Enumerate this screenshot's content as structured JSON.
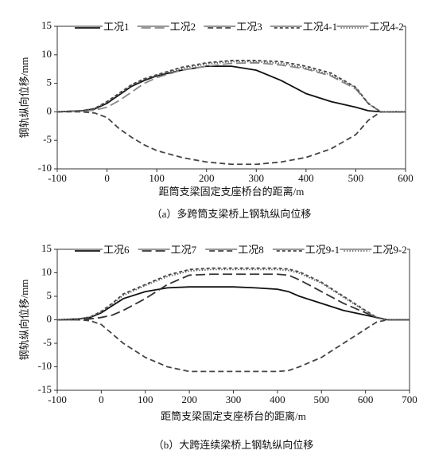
{
  "chart_data": [
    {
      "type": "line",
      "x_label": "距筒支梁固定支座桥台的距离/m",
      "y_label": "钢轨纵向位移/mm",
      "caption": "（a）多跨筒支梁桥上钢轨纵向位移",
      "x": [
        -100,
        -50,
        -25,
        0,
        25,
        50,
        75,
        100,
        150,
        200,
        250,
        300,
        350,
        400,
        450,
        500,
        525,
        550,
        600
      ],
      "xlim": [
        -100,
        600
      ],
      "xticks": [
        -100,
        0,
        100,
        200,
        300,
        400,
        500,
        600
      ],
      "ylim": [
        -10,
        15
      ],
      "yticks": [
        -10,
        -5,
        0,
        5,
        10,
        15
      ],
      "legend": "top",
      "series": [
        {
          "name": "工况1",
          "color": "#111111",
          "style": "solid",
          "values": [
            0,
            0.2,
            0.5,
            1.5,
            3,
            4.5,
            5.5,
            6.3,
            7.3,
            8,
            8,
            7.3,
            5.5,
            3.2,
            1.8,
            0.8,
            0.2,
            0,
            0
          ]
        },
        {
          "name": "工况2",
          "color": "#888888",
          "style": "longdash",
          "values": [
            0,
            0.1,
            0.3,
            0.8,
            2,
            3.5,
            5,
            6,
            7.3,
            8,
            8.5,
            8.6,
            8.2,
            7.5,
            6.3,
            4,
            1.5,
            0,
            0
          ]
        },
        {
          "name": "工况3",
          "color": "#444444",
          "style": "dashed",
          "values": [
            0,
            0,
            -0.2,
            -1,
            -3,
            -4.5,
            -5.8,
            -6.8,
            -8,
            -8.8,
            -9.2,
            -9.2,
            -8.8,
            -8,
            -6.5,
            -4,
            -1.5,
            0,
            0
          ]
        },
        {
          "name": "工况4-1",
          "color": "#444444",
          "style": "shortdash",
          "values": [
            0,
            0.2,
            0.6,
            1.8,
            3.3,
            4.8,
            5.8,
            6.5,
            7.8,
            8.6,
            9,
            9,
            8.8,
            8,
            6.8,
            4.3,
            1.5,
            0,
            0
          ]
        },
        {
          "name": "工况4-2",
          "color": "#666666",
          "style": "dotted",
          "values": [
            0,
            0.2,
            0.6,
            1.7,
            3.2,
            4.7,
            5.7,
            6.4,
            7.6,
            8.4,
            8.8,
            8.8,
            8.5,
            7.7,
            6.5,
            4.2,
            1.4,
            0,
            0
          ]
        }
      ]
    },
    {
      "type": "line",
      "x_label": "距筒支梁固定支座桥台的距离/m",
      "y_label": "钢轨纵向位移/mm",
      "caption": "（b）大跨连续梁桥上钢轨纵向位移",
      "x": [
        -100,
        -50,
        -25,
        0,
        25,
        50,
        100,
        150,
        200,
        250,
        300,
        350,
        400,
        425,
        450,
        500,
        550,
        600,
        625,
        650,
        700
      ],
      "xlim": [
        -100,
        700
      ],
      "xticks": [
        -100,
        0,
        100,
        200,
        300,
        400,
        500,
        600,
        700
      ],
      "ylim": [
        -15,
        15
      ],
      "yticks": [
        -15,
        -10,
        -5,
        0,
        5,
        10,
        15
      ],
      "legend": "top",
      "series": [
        {
          "name": "工况6",
          "color": "#111111",
          "style": "solid",
          "values": [
            0,
            0.2,
            0.5,
            1.5,
            3,
            4.5,
            6,
            6.8,
            7,
            7,
            7,
            6.8,
            6.5,
            6,
            5,
            3.5,
            2,
            1,
            0.5,
            0,
            0
          ]
        },
        {
          "name": "工况7",
          "color": "#333333",
          "style": "longdash",
          "values": [
            0,
            0,
            0.2,
            0.5,
            1,
            2,
            4.5,
            7.5,
            9.5,
            9.7,
            9.7,
            9.7,
            9.7,
            9.5,
            8.5,
            6,
            3.5,
            1.5,
            0.5,
            0,
            0
          ]
        },
        {
          "name": "工况8",
          "color": "#444444",
          "style": "dashed",
          "values": [
            0,
            0,
            -0.2,
            -1,
            -3,
            -5,
            -8,
            -10,
            -11,
            -11,
            -11,
            -11,
            -11,
            -10.8,
            -10,
            -8,
            -5,
            -2,
            -0.5,
            0,
            0
          ]
        },
        {
          "name": "工况9-1",
          "color": "#444444",
          "style": "shortdash",
          "values": [
            0,
            0.2,
            0.6,
            1.8,
            3.5,
            5.5,
            7.5,
            9.5,
            10.7,
            11,
            11,
            11,
            11,
            10.8,
            10.2,
            8,
            5,
            2,
            0.5,
            0,
            0
          ]
        },
        {
          "name": "工况9-2",
          "color": "#666666",
          "style": "dotted",
          "values": [
            0,
            0.2,
            0.6,
            1.7,
            3.3,
            5.2,
            7.3,
            9.2,
            10.4,
            10.7,
            10.7,
            10.7,
            10.7,
            10.5,
            9.9,
            7.8,
            4.8,
            1.8,
            0.4,
            0,
            0
          ]
        }
      ]
    }
  ]
}
